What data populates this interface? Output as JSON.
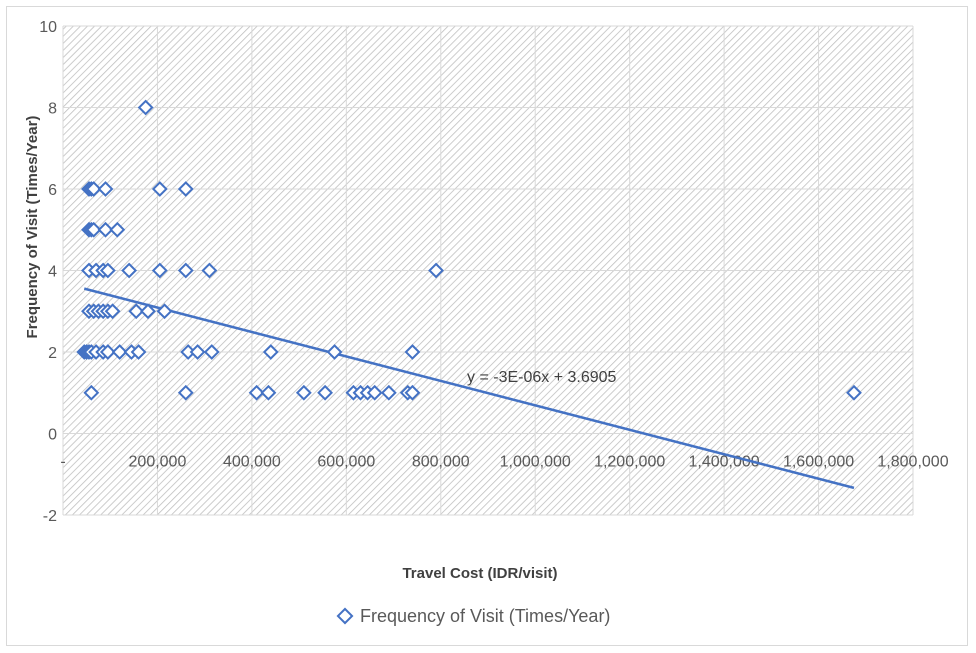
{
  "chart_data": {
    "type": "scatter",
    "title": "",
    "xlabel": "Travel Cost (IDR/visit)",
    "ylabel": "Frequency of Visit (Times/Year)",
    "xlim": [
      0,
      1800000
    ],
    "ylim": [
      -2,
      10
    ],
    "x_ticks": [
      0,
      200000,
      400000,
      600000,
      800000,
      1000000,
      1200000,
      1400000,
      1600000,
      1800000
    ],
    "x_tick_labels": [
      "-",
      "200,000",
      "400,000",
      "600,000",
      "800,000",
      "1,000,000",
      "1,200,000",
      "1,400,000",
      "1,600,000",
      "1,800,000"
    ],
    "y_ticks": [
      -2,
      0,
      2,
      4,
      6,
      8,
      10
    ],
    "y_tick_labels": [
      "-2",
      "0",
      "2",
      "4",
      "6",
      "8",
      "10"
    ],
    "grid": true,
    "legend_position": "bottom",
    "marker_color": "#4472C4",
    "trend_color": "#4472C4",
    "series": [
      {
        "name": "Frequency of Visit (Times/Year)",
        "points": [
          [
            175000,
            8
          ],
          [
            55000,
            6
          ],
          [
            60000,
            6
          ],
          [
            65000,
            6
          ],
          [
            90000,
            6
          ],
          [
            205000,
            6
          ],
          [
            260000,
            6
          ],
          [
            55000,
            5
          ],
          [
            60000,
            5
          ],
          [
            65000,
            5
          ],
          [
            90000,
            5
          ],
          [
            115000,
            5
          ],
          [
            55000,
            4
          ],
          [
            70000,
            4
          ],
          [
            85000,
            4
          ],
          [
            95000,
            4
          ],
          [
            140000,
            4
          ],
          [
            205000,
            4
          ],
          [
            260000,
            4
          ],
          [
            310000,
            4
          ],
          [
            790000,
            4
          ],
          [
            55000,
            3
          ],
          [
            65000,
            3
          ],
          [
            75000,
            3
          ],
          [
            85000,
            3
          ],
          [
            95000,
            3
          ],
          [
            105000,
            3
          ],
          [
            155000,
            3
          ],
          [
            180000,
            3
          ],
          [
            215000,
            3
          ],
          [
            45000,
            2
          ],
          [
            50000,
            2
          ],
          [
            55000,
            2
          ],
          [
            60000,
            2
          ],
          [
            70000,
            2
          ],
          [
            85000,
            2
          ],
          [
            95000,
            2
          ],
          [
            120000,
            2
          ],
          [
            145000,
            2
          ],
          [
            160000,
            2
          ],
          [
            265000,
            2
          ],
          [
            285000,
            2
          ],
          [
            315000,
            2
          ],
          [
            440000,
            2
          ],
          [
            575000,
            2
          ],
          [
            740000,
            2
          ],
          [
            60000,
            1
          ],
          [
            260000,
            1
          ],
          [
            410000,
            1
          ],
          [
            435000,
            1
          ],
          [
            510000,
            1
          ],
          [
            555000,
            1
          ],
          [
            615000,
            1
          ],
          [
            630000,
            1
          ],
          [
            645000,
            1
          ],
          [
            660000,
            1
          ],
          [
            690000,
            1
          ],
          [
            730000,
            1
          ],
          [
            740000,
            1
          ],
          [
            1675000,
            1
          ]
        ]
      }
    ],
    "trendline": {
      "slope": -3e-06,
      "intercept": 3.6905,
      "x_range": [
        45000,
        1675000
      ],
      "equation_label": "y = -3E-06x + 3.6905"
    }
  }
}
